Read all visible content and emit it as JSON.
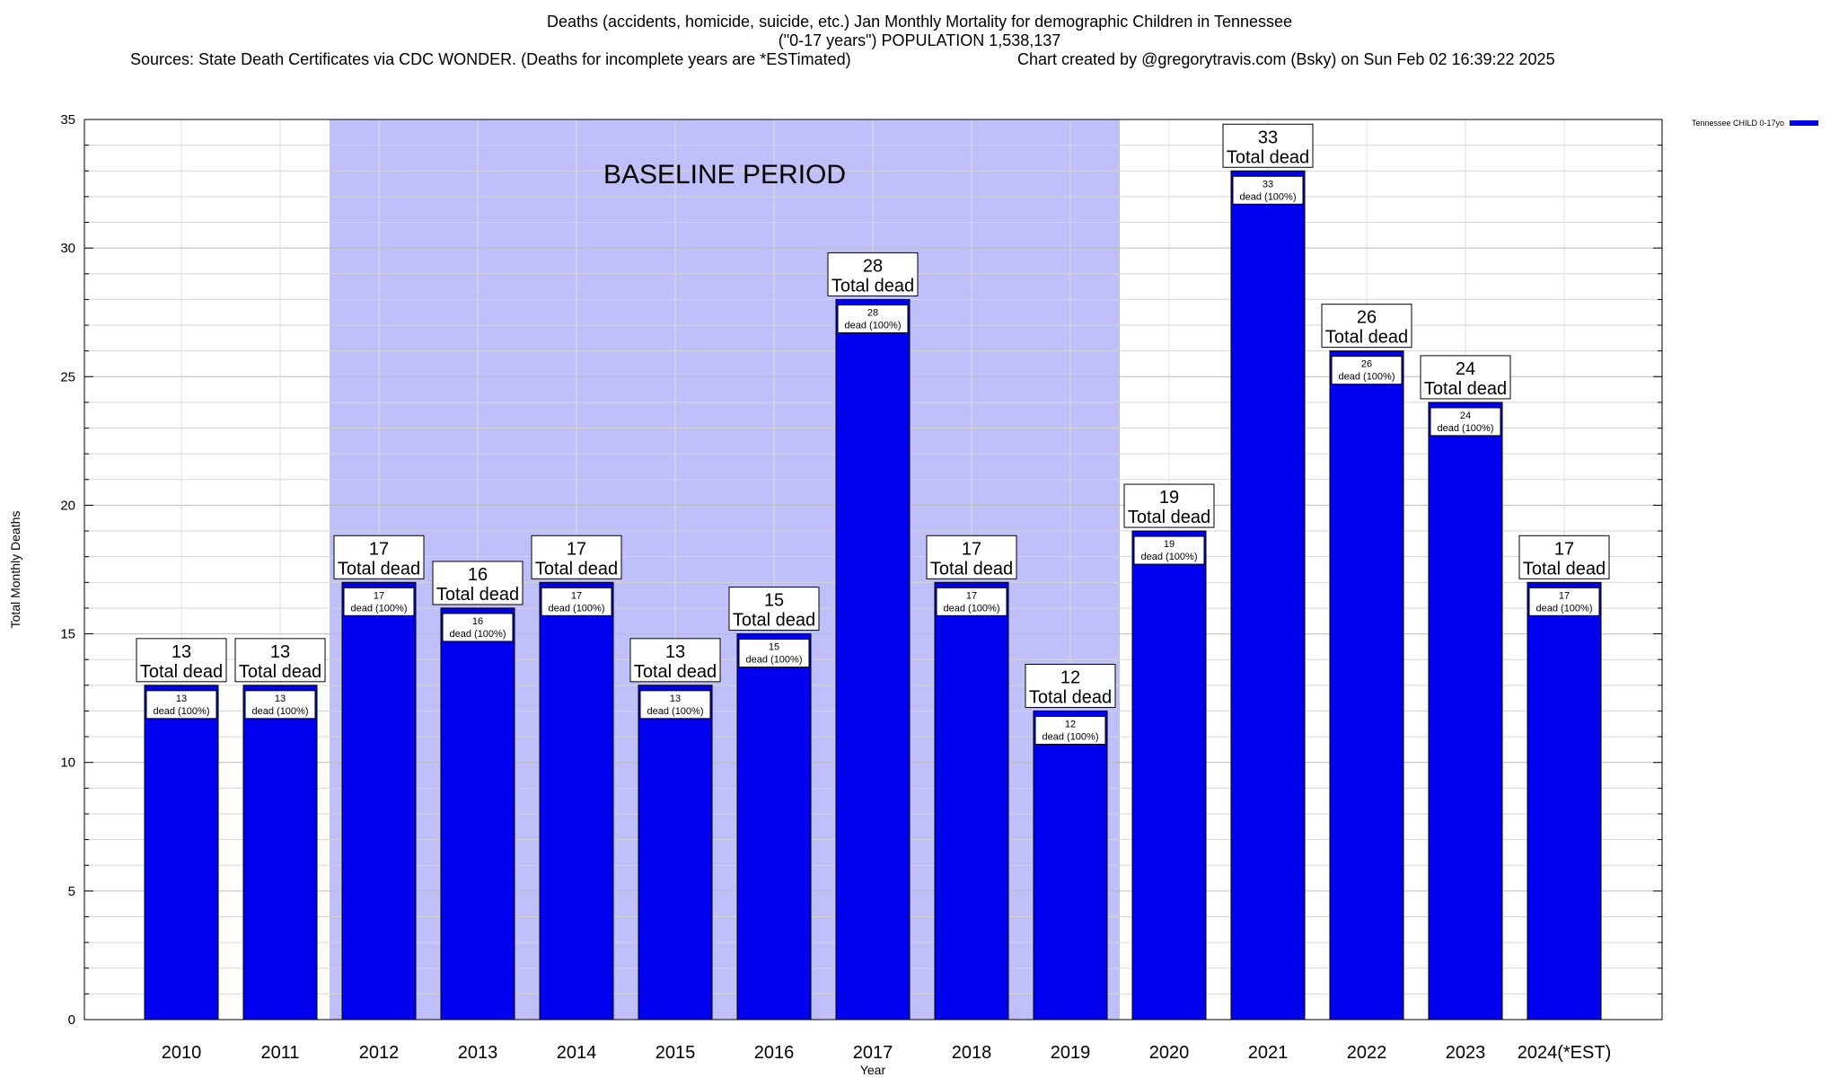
{
  "title": {
    "line1": "Deaths (accidents, homicide, suicide, etc.) Jan Monthly Mortality for demographic Children in Tennessee",
    "line2": "(\"0-17 years\") POPULATION 1,538,137",
    "line3_left": "Sources: State Death Certificates via CDC WONDER. (Deaths for incomplete years are *ESTimated)",
    "line3_right": "Chart created by @gregorytravis.com (Bsky) on Sun Feb 02 16:39:22 2025"
  },
  "legend": {
    "label": "Tennessee CHILD 0-17yo",
    "color": "#0000ee"
  },
  "chart_data": {
    "type": "bar",
    "categories": [
      "2010",
      "2011",
      "2012",
      "2013",
      "2014",
      "2015",
      "2016",
      "2017",
      "2018",
      "2019",
      "2020",
      "2021",
      "2022",
      "2023",
      "2024(*EST)"
    ],
    "series": [
      {
        "name": "Tennessee CHILD 0-17yo",
        "values": [
          13,
          13,
          17,
          16,
          17,
          13,
          15,
          28,
          17,
          12,
          19,
          33,
          26,
          24,
          17
        ]
      }
    ],
    "title": "Deaths (accidents, homicide, suicide, etc.) Jan Monthly Mortality for demographic Children in Tennessee",
    "xlabel": "Year",
    "ylabel": "Total Monthly Deaths",
    "ylim": [
      0,
      35
    ],
    "yticks": [
      0,
      5,
      10,
      15,
      20,
      25,
      30,
      35
    ],
    "grid": true,
    "legend_position": "top-right",
    "annotations": {
      "baseline_label": "BASELINE PERIOD",
      "baseline_from": "2012",
      "baseline_to": "2019",
      "total_label": "Total dead",
      "inner_label": "dead (100%)"
    },
    "colors": {
      "bar": "#0000ee",
      "baseline": "#bfbffa"
    }
  }
}
